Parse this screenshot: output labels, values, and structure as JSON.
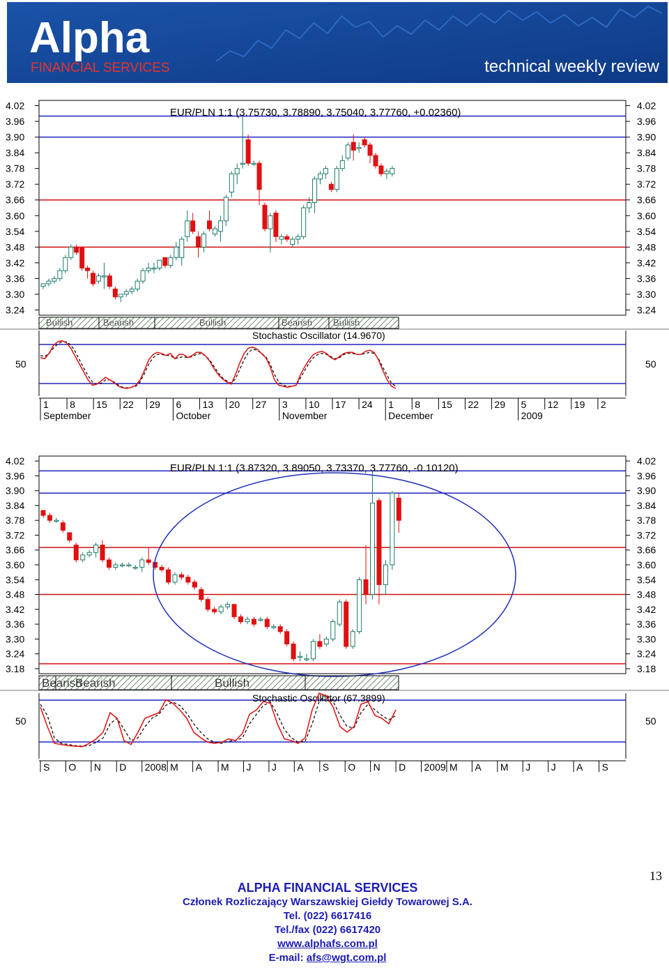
{
  "header": {
    "logo_text": "Alpha",
    "brand_subtitle": "FINANCIAL SERVICES",
    "tagline": "technical weekly review",
    "colors": {
      "banner": "#16489a",
      "brand_red": "#e8332a",
      "text_white": "#ffffff"
    }
  },
  "page_number": "13",
  "footer": {
    "company": "ALPHA FINANCIAL SERVICES",
    "member": "Członek Rozliczający Warszawskiej Giełdy Towarowej S.A.",
    "tel": "Tel. (022) 6617416",
    "telfax": "Tel./fax (022) 6617420",
    "website": "www.alphafs.com.pl",
    "email_label": "E-mail:",
    "email": "afs@wgt.com.pl"
  },
  "chart_data": [
    {
      "type": "candlestick",
      "title": "EUR/PLN 1:1 (3.75730, 3.78890, 3.75040, 3.77760, +0.02360)",
      "ylim": [
        3.22,
        4.04
      ],
      "yticks": [
        "4.02",
        "3.96",
        "3.90",
        "3.84",
        "3.78",
        "3.72",
        "3.66",
        "3.60",
        "3.54",
        "3.48",
        "3.42",
        "3.36",
        "3.30",
        "3.24"
      ],
      "hlines": [
        {
          "value": 3.98,
          "color": "#2020c0"
        },
        {
          "value": 3.9,
          "color": "#2020c0"
        },
        {
          "value": 3.66,
          "color": "#d01010"
        },
        {
          "value": 3.48,
          "color": "#d01010"
        }
      ],
      "candles": [
        [
          3.33,
          3.34,
          3.32,
          3.34
        ],
        [
          3.34,
          3.36,
          3.33,
          3.35
        ],
        [
          3.35,
          3.37,
          3.34,
          3.36
        ],
        [
          3.36,
          3.4,
          3.35,
          3.39
        ],
        [
          3.39,
          3.45,
          3.38,
          3.44
        ],
        [
          3.44,
          3.49,
          3.43,
          3.48
        ],
        [
          3.48,
          3.49,
          3.45,
          3.46
        ],
        [
          3.48,
          3.48,
          3.39,
          3.4
        ],
        [
          3.4,
          3.41,
          3.36,
          3.39
        ],
        [
          3.38,
          3.39,
          3.33,
          3.34
        ],
        [
          3.35,
          3.38,
          3.34,
          3.37
        ],
        [
          3.37,
          3.42,
          3.32,
          3.37
        ],
        [
          3.37,
          3.38,
          3.32,
          3.33
        ],
        [
          3.32,
          3.33,
          3.28,
          3.29
        ],
        [
          3.29,
          3.3,
          3.27,
          3.3
        ],
        [
          3.3,
          3.32,
          3.29,
          3.31
        ],
        [
          3.31,
          3.33,
          3.3,
          3.32
        ],
        [
          3.32,
          3.36,
          3.31,
          3.35
        ],
        [
          3.35,
          3.4,
          3.34,
          3.39
        ],
        [
          3.39,
          3.42,
          3.38,
          3.4
        ],
        [
          3.4,
          3.42,
          3.38,
          3.4
        ],
        [
          3.4,
          3.43,
          3.39,
          3.43
        ],
        [
          3.44,
          3.44,
          3.4,
          3.41
        ],
        [
          3.41,
          3.45,
          3.4,
          3.44
        ],
        [
          3.44,
          3.5,
          3.43,
          3.48
        ],
        [
          3.44,
          3.52,
          3.41,
          3.51
        ],
        [
          3.52,
          3.62,
          3.5,
          3.58
        ],
        [
          3.58,
          3.61,
          3.53,
          3.54
        ],
        [
          3.52,
          3.54,
          3.44,
          3.48
        ],
        [
          3.48,
          3.54,
          3.46,
          3.53
        ],
        [
          3.58,
          3.62,
          3.54,
          3.55
        ],
        [
          3.53,
          3.56,
          3.52,
          3.55
        ],
        [
          3.54,
          3.6,
          3.5,
          3.58
        ],
        [
          3.58,
          3.68,
          3.56,
          3.67
        ],
        [
          3.69,
          3.77,
          3.67,
          3.76
        ],
        [
          3.76,
          3.8,
          3.72,
          3.78
        ],
        [
          3.8,
          3.98,
          3.78,
          3.8
        ],
        [
          3.89,
          3.91,
          3.79,
          3.8
        ],
        [
          3.8,
          3.81,
          3.79,
          3.8
        ],
        [
          3.8,
          3.81,
          3.64,
          3.7
        ],
        [
          3.64,
          3.65,
          3.54,
          3.55
        ],
        [
          3.55,
          3.61,
          3.46,
          3.6
        ],
        [
          3.61,
          3.62,
          3.5,
          3.52
        ],
        [
          3.51,
          3.53,
          3.49,
          3.52
        ],
        [
          3.52,
          3.53,
          3.5,
          3.51
        ],
        [
          3.49,
          3.52,
          3.48,
          3.51
        ],
        [
          3.51,
          3.53,
          3.49,
          3.52
        ],
        [
          3.52,
          3.64,
          3.51,
          3.63
        ],
        [
          3.63,
          3.67,
          3.61,
          3.65
        ],
        [
          3.65,
          3.75,
          3.61,
          3.74
        ],
        [
          3.74,
          3.77,
          3.72,
          3.76
        ],
        [
          3.76,
          3.79,
          3.74,
          3.78
        ],
        [
          3.72,
          3.73,
          3.69,
          3.7
        ],
        [
          3.7,
          3.79,
          3.69,
          3.78
        ],
        [
          3.78,
          3.83,
          3.77,
          3.81
        ],
        [
          3.82,
          3.88,
          3.81,
          3.87
        ],
        [
          3.88,
          3.91,
          3.81,
          3.85
        ],
        [
          3.86,
          3.88,
          3.84,
          3.86
        ],
        [
          3.89,
          3.9,
          3.86,
          3.87
        ],
        [
          3.87,
          3.88,
          3.8,
          3.83
        ],
        [
          3.83,
          3.84,
          3.78,
          3.79
        ],
        [
          3.79,
          3.8,
          3.75,
          3.76
        ],
        [
          3.76,
          3.78,
          3.74,
          3.77
        ],
        [
          3.76,
          3.79,
          3.75,
          3.78
        ]
      ],
      "sentiment_bands": [
        "Bullish",
        "Bearish",
        "Bullish",
        "Bearish",
        "Bullish"
      ],
      "oscillator": {
        "label": "Stochastic Oscillator (14.9670)",
        "level_label": "50",
        "k": [
          62,
          60,
          70,
          85,
          92,
          94,
          90,
          80,
          65,
          50,
          35,
          20,
          10,
          12,
          18,
          25,
          20,
          15,
          8,
          5,
          4,
          6,
          10,
          20,
          38,
          58,
          68,
          72,
          70,
          66,
          70,
          60,
          68,
          68,
          62,
          66,
          72,
          72,
          66,
          56,
          42,
          30,
          22,
          16,
          12,
          30,
          52,
          70,
          80,
          82,
          78,
          70,
          62,
          45,
          20,
          10,
          8,
          6,
          8,
          10,
          30,
          45,
          58,
          68,
          72,
          74,
          70,
          62,
          58,
          64,
          70,
          72,
          72,
          68,
          68,
          74,
          76,
          72,
          58,
          38,
          20,
          8,
          4
        ],
        "d": [
          66,
          64,
          70,
          80,
          88,
          92,
          92,
          86,
          74,
          58,
          42,
          28,
          16,
          12,
          14,
          20,
          20,
          16,
          10,
          6,
          5,
          6,
          8,
          16,
          32,
          50,
          62,
          68,
          68,
          66,
          66,
          60,
          62,
          64,
          62,
          64,
          68,
          70,
          66,
          58,
          46,
          34,
          24,
          18,
          14,
          22,
          40,
          58,
          72,
          78,
          76,
          70,
          64,
          50,
          30,
          16,
          10,
          8,
          8,
          10,
          24,
          38,
          52,
          62,
          68,
          70,
          68,
          64,
          60,
          62,
          68,
          70,
          70,
          68,
          68,
          70,
          72,
          70,
          60,
          44,
          28,
          14,
          8
        ]
      },
      "x_ticks": [
        "1",
        "8",
        "15",
        "22",
        "29",
        "6",
        "13",
        "20",
        "27",
        "3",
        "10",
        "17",
        "24",
        "1",
        "8",
        "15",
        "22",
        "29",
        "5",
        "12",
        "19",
        "2"
      ],
      "x_months": [
        "September",
        "October",
        "November",
        "December",
        "2009"
      ]
    },
    {
      "type": "candlestick",
      "title": "EUR/PLN 1:1 (3.87320, 3.89050, 3.73370, 3.77760, -0.10120)",
      "ylim": [
        3.16,
        4.04
      ],
      "yticks": [
        "4.02",
        "3.96",
        "3.90",
        "3.84",
        "3.78",
        "3.72",
        "3.66",
        "3.60",
        "3.54",
        "3.48",
        "3.42",
        "3.36",
        "3.30",
        "3.24",
        "3.18"
      ],
      "hlines": [
        {
          "value": 3.98,
          "color": "#2020c0"
        },
        {
          "value": 3.89,
          "color": "#2020c0"
        },
        {
          "value": 3.67,
          "color": "#d01010"
        },
        {
          "value": 3.48,
          "color": "#d01010"
        },
        {
          "value": 3.2,
          "color": "#d01010"
        }
      ],
      "candles": [
        [
          3.82,
          3.82,
          3.79,
          3.8
        ],
        [
          3.8,
          3.81,
          3.77,
          3.78
        ],
        [
          3.78,
          3.79,
          3.77,
          3.78
        ],
        [
          3.77,
          3.78,
          3.73,
          3.74
        ],
        [
          3.73,
          3.73,
          3.69,
          3.7
        ],
        [
          3.68,
          3.69,
          3.61,
          3.62
        ],
        [
          3.62,
          3.65,
          3.61,
          3.64
        ],
        [
          3.64,
          3.66,
          3.63,
          3.65
        ],
        [
          3.65,
          3.69,
          3.63,
          3.68
        ],
        [
          3.68,
          3.7,
          3.61,
          3.62
        ],
        [
          3.62,
          3.63,
          3.58,
          3.59
        ],
        [
          3.59,
          3.61,
          3.58,
          3.6
        ],
        [
          3.6,
          3.61,
          3.59,
          3.6
        ],
        [
          3.6,
          3.61,
          3.59,
          3.6
        ],
        [
          3.59,
          3.6,
          3.58,
          3.59
        ],
        [
          3.59,
          3.63,
          3.57,
          3.62
        ],
        [
          3.62,
          3.67,
          3.6,
          3.61
        ],
        [
          3.61,
          3.62,
          3.58,
          3.59
        ],
        [
          3.59,
          3.6,
          3.57,
          3.58
        ],
        [
          3.58,
          3.59,
          3.52,
          3.53
        ],
        [
          3.53,
          3.57,
          3.52,
          3.56
        ],
        [
          3.56,
          3.57,
          3.54,
          3.55
        ],
        [
          3.55,
          3.56,
          3.52,
          3.53
        ],
        [
          3.53,
          3.54,
          3.5,
          3.51
        ],
        [
          3.5,
          3.51,
          3.45,
          3.46
        ],
        [
          3.46,
          3.47,
          3.41,
          3.42
        ],
        [
          3.42,
          3.43,
          3.4,
          3.41
        ],
        [
          3.41,
          3.44,
          3.4,
          3.43
        ],
        [
          3.43,
          3.45,
          3.42,
          3.44
        ],
        [
          3.44,
          3.44,
          3.38,
          3.39
        ],
        [
          3.39,
          3.4,
          3.36,
          3.37
        ],
        [
          3.37,
          3.39,
          3.36,
          3.38
        ],
        [
          3.38,
          3.39,
          3.35,
          3.36
        ],
        [
          3.38,
          3.39,
          3.37,
          3.38
        ],
        [
          3.38,
          3.39,
          3.34,
          3.35
        ],
        [
          3.35,
          3.36,
          3.34,
          3.35
        ],
        [
          3.35,
          3.36,
          3.32,
          3.33
        ],
        [
          3.33,
          3.34,
          3.27,
          3.28
        ],
        [
          3.28,
          3.29,
          3.21,
          3.22
        ],
        [
          3.23,
          3.25,
          3.21,
          3.23
        ],
        [
          3.22,
          3.24,
          3.21,
          3.22
        ],
        [
          3.22,
          3.3,
          3.21,
          3.29
        ],
        [
          3.29,
          3.32,
          3.26,
          3.27
        ],
        [
          3.28,
          3.31,
          3.27,
          3.3
        ],
        [
          3.3,
          3.38,
          3.29,
          3.37
        ],
        [
          3.36,
          3.46,
          3.35,
          3.45
        ],
        [
          3.45,
          3.46,
          3.26,
          3.27
        ],
        [
          3.27,
          3.34,
          3.26,
          3.33
        ],
        [
          3.33,
          3.55,
          3.32,
          3.54
        ],
        [
          3.54,
          3.68,
          3.44,
          3.48
        ],
        [
          3.48,
          3.98,
          3.46,
          3.85
        ],
        [
          3.86,
          3.87,
          3.44,
          3.52
        ],
        [
          3.52,
          3.62,
          3.48,
          3.6
        ],
        [
          3.6,
          3.9,
          3.58,
          3.89
        ],
        [
          3.87,
          3.89,
          3.73,
          3.78
        ]
      ],
      "sentiment_bands": [
        "Bearish",
        "Bearish",
        "Bullish"
      ],
      "oscillator": {
        "label": "Stochastic Oscillator (67.3899)",
        "level_label": "50",
        "k": [
          75,
          40,
          10,
          8,
          6,
          5,
          4,
          10,
          18,
          30,
          65,
          55,
          15,
          8,
          30,
          55,
          60,
          65,
          88,
          82,
          70,
          55,
          30,
          20,
          12,
          10,
          12,
          18,
          15,
          28,
          62,
          70,
          85,
          82,
          45,
          18,
          15,
          10,
          20,
          70,
          100,
          95,
          75,
          40,
          30,
          40,
          80,
          85,
          60,
          55,
          45,
          70
        ],
        "d": [
          80,
          60,
          20,
          10,
          8,
          6,
          5,
          6,
          12,
          20,
          45,
          55,
          35,
          15,
          20,
          40,
          55,
          62,
          78,
          84,
          78,
          64,
          45,
          30,
          18,
          12,
          10,
          14,
          15,
          20,
          45,
          62,
          78,
          84,
          62,
          35,
          20,
          12,
          14,
          45,
          85,
          98,
          85,
          60,
          40,
          38,
          65,
          80,
          70,
          60,
          52,
          60
        ]
      },
      "x_ticks": [
        "S",
        "O",
        "N",
        "D",
        "2008",
        "M",
        "A",
        "M",
        "J",
        "J",
        "A",
        "S",
        "O",
        "N",
        "D",
        "2009",
        "M",
        "A",
        "M",
        "J",
        "J",
        "A",
        "S"
      ]
    }
  ]
}
